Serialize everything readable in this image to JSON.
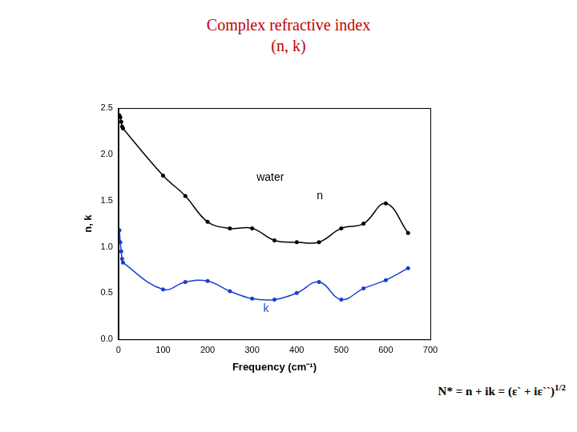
{
  "chart_data": {
    "type": "line",
    "title": "Complex refractive index",
    "subtitle": "(n, k)",
    "x_label": "Frequency (cm⁻¹)",
    "y_label": "n, k",
    "x": [
      2,
      4,
      6,
      8,
      10,
      100,
      150,
      200,
      250,
      300,
      350,
      400,
      450,
      500,
      550,
      600,
      650
    ],
    "series": [
      {
        "name": "n",
        "color": "#000000",
        "marker": "circle",
        "line_style": "solid",
        "values": [
          2.42,
          2.4,
          2.35,
          2.3,
          2.28,
          1.77,
          1.55,
          1.27,
          1.2,
          1.2,
          1.07,
          1.05,
          1.05,
          1.2,
          1.25,
          1.47,
          1.15
        ]
      },
      {
        "name": "k",
        "color": "#1a3fd1",
        "marker": "circle",
        "line_style": "solid",
        "values": [
          1.18,
          1.05,
          0.95,
          0.87,
          0.83,
          0.54,
          0.62,
          0.63,
          0.52,
          0.44,
          0.43,
          0.5,
          0.62,
          0.43,
          0.55,
          0.64,
          0.77
        ]
      }
    ],
    "xlim": [
      0,
      700
    ],
    "xticks": [
      0,
      100,
      200,
      300,
      400,
      500,
      600,
      700
    ],
    "ylim": [
      0,
      2.5
    ],
    "yticks": [
      {
        "value": 0,
        "label": "0.0"
      },
      0.5,
      {
        "value": 1,
        "label": "1.0"
      },
      1.5,
      {
        "value": 2,
        "label": "2.0"
      },
      2.5
    ],
    "grid": false,
    "annotations": [
      {
        "text": "water",
        "x": 310,
        "y": 1.75,
        "color": "#000000"
      },
      {
        "text": "n",
        "x": 445,
        "y": 1.55,
        "color": "#000000"
      },
      {
        "text": "k",
        "x": 325,
        "y": 0.33,
        "color": "#1a3fd1"
      }
    ],
    "formula": "N* = n + ik = (ε` + iε``)",
    "formula_exponent": "1/2"
  }
}
